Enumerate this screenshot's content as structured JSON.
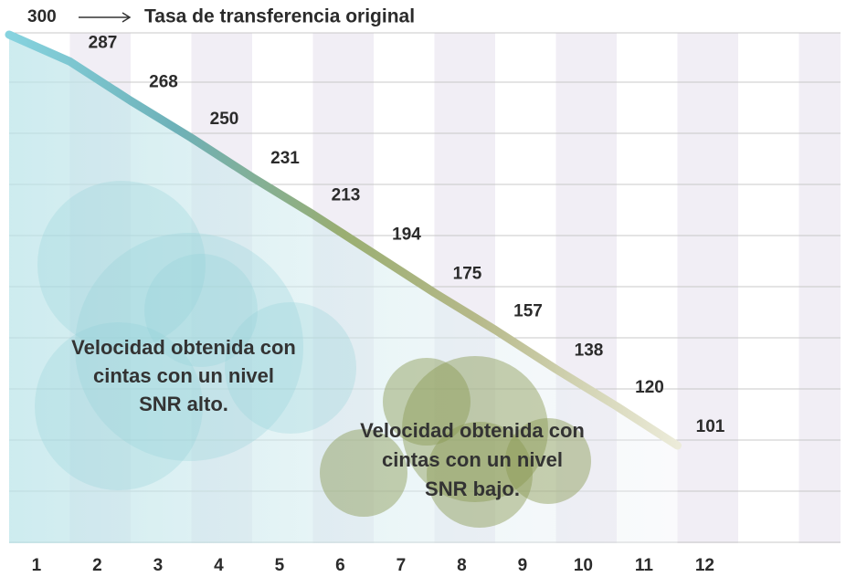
{
  "chart_data": {
    "type": "line",
    "title": "Tasa de transferencia original",
    "categories": [
      "1",
      "2",
      "3",
      "4",
      "5",
      "6",
      "7",
      "8",
      "9",
      "10",
      "11",
      "12"
    ],
    "values": [
      300,
      287,
      268,
      250,
      231,
      213,
      194,
      175,
      157,
      138,
      120,
      101
    ],
    "annotations": [
      [
        "Velocidad obtenida con",
        "cintas con un nivel",
        "SNR alto."
      ],
      [
        "Velocidad obtenida con",
        "cintas con un nivel",
        "SNR bajo."
      ]
    ]
  }
}
